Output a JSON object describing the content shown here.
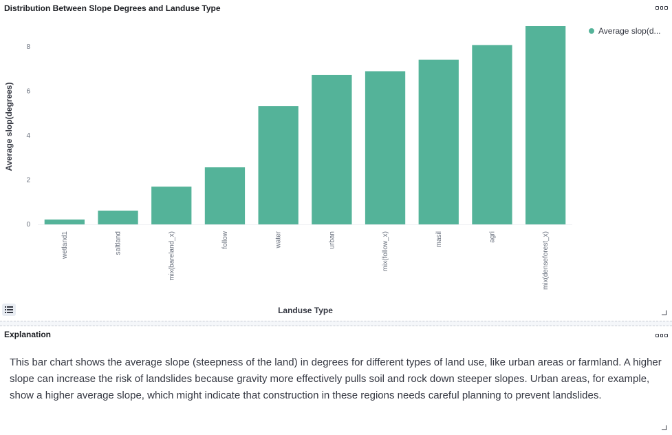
{
  "panel": {
    "title": "Distribution Between Slope Degrees and Landuse Type"
  },
  "legend": {
    "label": "Average slop(d...",
    "color": "#54b399"
  },
  "chart_data": {
    "type": "bar",
    "categories": [
      "wetland1",
      "saltland",
      "mix(bareland_x)",
      "follow",
      "water",
      "urban",
      "mix(follow_x)",
      "masil",
      "agri",
      "mix(denseforest_x)"
    ],
    "values": [
      0.22,
      0.62,
      1.7,
      2.57,
      5.33,
      6.73,
      6.9,
      7.42,
      8.08,
      8.93
    ],
    "xlabel": "Landuse Type",
    "ylabel": "Average slop(degrees)",
    "ylim": [
      0,
      8.93
    ],
    "yticks": [
      0,
      2,
      4,
      6,
      8
    ],
    "color": "#54b399",
    "grid": false,
    "legend_position": "top-right"
  },
  "explanation_panel": {
    "title": "Explanation",
    "text": "This bar chart shows the average slope (steepness of the land) in degrees for different types of land use, like urban areas or farmland. A higher slope can increase the risk of landslides because gravity more effectively pulls soil and rock down steeper slopes. Urban areas, for example, show a higher average slope, which might indicate that construction in these regions needs careful planning to prevent landslides."
  }
}
